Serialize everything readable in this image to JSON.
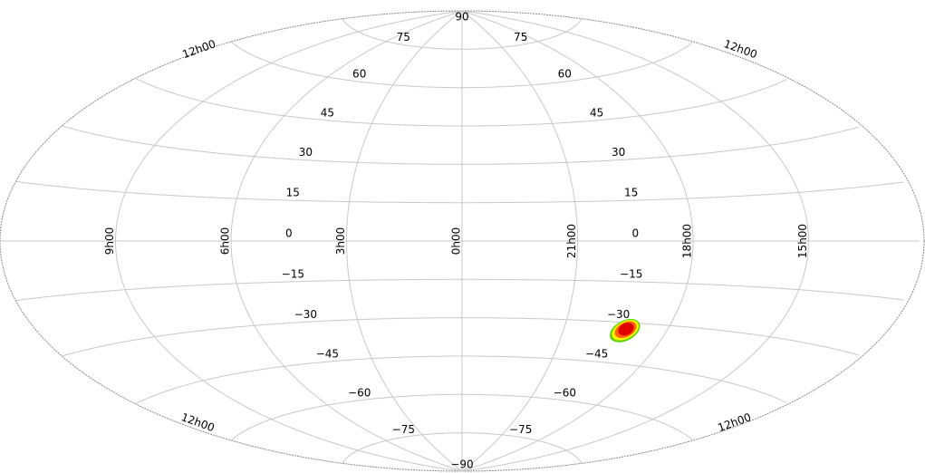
{
  "map": {
    "projection": "aitoff",
    "background": "#ffffff",
    "outline_color": "#8a8a8a",
    "grid_color": "#c8c8c8",
    "meridians": [
      {
        "ra_hours": 9,
        "label": "9h00"
      },
      {
        "ra_hours": 6,
        "label": "6h00"
      },
      {
        "ra_hours": 3,
        "label": "3h00"
      },
      {
        "ra_hours": 0,
        "label": "0h00"
      },
      {
        "ra_hours": 21,
        "label": "21h00"
      },
      {
        "ra_hours": 18,
        "label": "18h00"
      },
      {
        "ra_hours": 15,
        "label": "15h00"
      }
    ],
    "edge_labels": {
      "top_left": "12h00",
      "top_right": "12h00",
      "bottom_left": "12h00",
      "bottom_right": "12h00"
    },
    "parallels": [
      {
        "dec": 90,
        "label": "90"
      },
      {
        "dec": 75,
        "label": "75"
      },
      {
        "dec": 60,
        "label": "60"
      },
      {
        "dec": 45,
        "label": "45"
      },
      {
        "dec": 30,
        "label": "30"
      },
      {
        "dec": 15,
        "label": "15"
      },
      {
        "dec": 0,
        "label": "0"
      },
      {
        "dec": -15,
        "label": "−15"
      },
      {
        "dec": -30,
        "label": "−30"
      },
      {
        "dec": -45,
        "label": "−45"
      },
      {
        "dec": -60,
        "label": "−60"
      },
      {
        "dec": -75,
        "label": "−75"
      },
      {
        "dec": -90,
        "label": "−90"
      }
    ],
    "skymap_region": {
      "ra_hours": 19.2,
      "dec": -33,
      "colors": [
        "#55d400",
        "#ffff00",
        "#ff6600",
        "#e00000"
      ]
    }
  }
}
